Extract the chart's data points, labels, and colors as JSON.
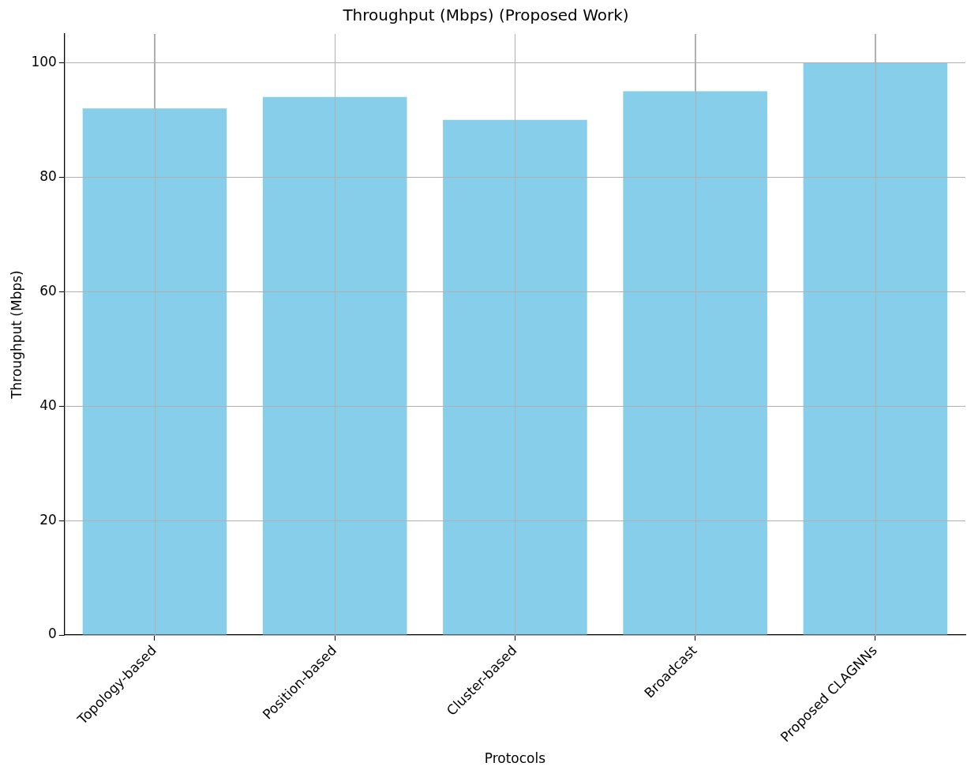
{
  "chart_data": {
    "type": "bar",
    "title": "Throughput (Mbps) (Proposed Work)",
    "xlabel": "Protocols",
    "ylabel": "Throughput (Mbps)",
    "categories": [
      "Topology-based",
      "Position-based",
      "Cluster-based",
      "Broadcast",
      "Proposed CLAGNNs"
    ],
    "values": [
      92,
      94,
      90,
      95,
      100
    ],
    "color": "#87ceeb",
    "ylim": [
      0,
      105
    ],
    "yticks": [
      0,
      20,
      40,
      60,
      80,
      100
    ],
    "grid": true,
    "legend": false
  }
}
